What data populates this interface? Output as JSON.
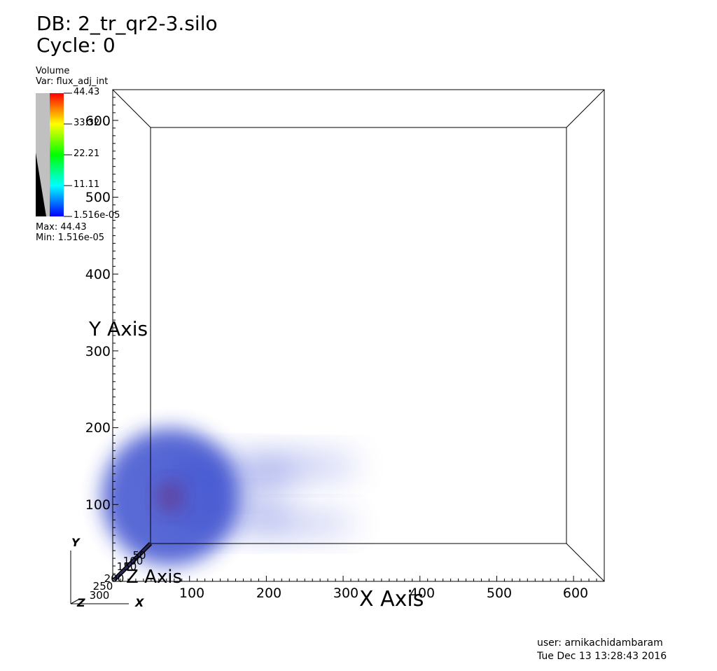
{
  "header": {
    "db_line": "DB: 2_tr_qr2-3.silo",
    "cycle_line": "Cycle: 0"
  },
  "legend": {
    "plot_type": "Volume",
    "var_label": "Var: flux_adj_int",
    "ticks": [
      "44.43",
      "33.32",
      "22.21",
      "11.11",
      "1.516e-05"
    ],
    "max_label": "Max:  44.43",
    "min_label": "Min:  1.516e-05",
    "colors": [
      "#ff0000",
      "#ffff00",
      "#00ff00",
      "#00ffff",
      "#0000ff"
    ]
  },
  "chart_data": {
    "type": "heatmap",
    "title": "",
    "xlabel": "X Axis",
    "ylabel": "Y Axis",
    "zlabel": "Z Axis",
    "x_ticks": [
      "100",
      "200",
      "300",
      "400",
      "500",
      "600"
    ],
    "y_ticks": [
      "100",
      "200",
      "300",
      "400",
      "500",
      "600"
    ],
    "z_ticks": [
      "50",
      "100",
      "150",
      "200",
      "250",
      "300"
    ],
    "xlim": [
      0,
      640
    ],
    "ylim": [
      0,
      640
    ],
    "var": "flux_adj_int",
    "vmin": 1.516e-05,
    "vmax": 44.43,
    "blobs": [
      {
        "x": 75,
        "y": 110,
        "intensity": 1.0
      },
      {
        "x": 150,
        "y": 140,
        "intensity": 0.35
      },
      {
        "x": 250,
        "y": 150,
        "intensity": 0.18
      },
      {
        "x": 150,
        "y": 85,
        "intensity": 0.3
      },
      {
        "x": 250,
        "y": 75,
        "intensity": 0.15
      }
    ]
  },
  "triad": {
    "x": "X",
    "y": "Y",
    "z": "Z"
  },
  "footer": {
    "user": "user: arnikachidambaram",
    "date": "Tue Dec 13 13:28:43 2016"
  }
}
